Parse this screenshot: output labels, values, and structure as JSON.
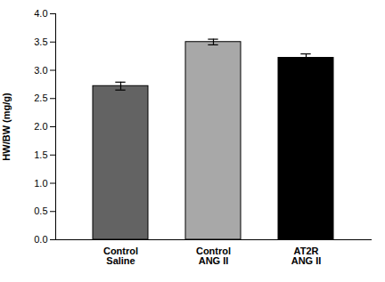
{
  "chart_data": {
    "type": "bar",
    "categories": [
      "Control\nSaline",
      "Control\nANG II",
      "AT2R\nANG II"
    ],
    "values": [
      2.72,
      3.5,
      3.22
    ],
    "errors": [
      0.07,
      0.05,
      0.07
    ],
    "colors": [
      "#636363",
      "#a8a8a8",
      "#000000"
    ],
    "ylabel": "HW/BW (mg/g)",
    "ylim": [
      0,
      4.0
    ],
    "yticks": [
      {
        "value": 0,
        "label": "0.0"
      },
      0.5,
      {
        "value": 1.0,
        "label": "1.0"
      },
      1.5,
      {
        "value": 2.0,
        "label": "2.0"
      },
      2.5,
      {
        "value": 3.0,
        "label": "3.0"
      },
      3.5,
      {
        "value": 4.0,
        "label": "4.0"
      }
    ],
    "grid": false
  }
}
